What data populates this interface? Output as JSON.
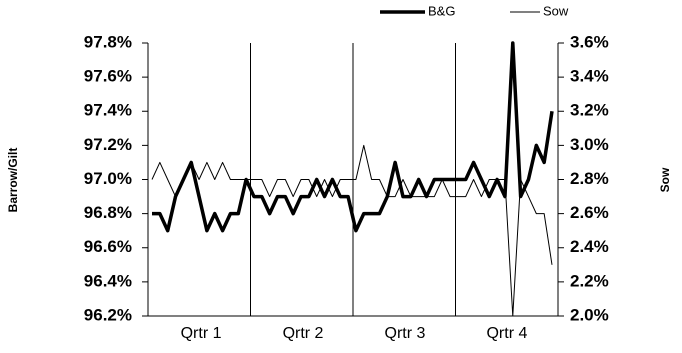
{
  "chart_data": {
    "type": "line",
    "categories": [
      null,
      null,
      null,
      null,
      null,
      null,
      "Qrtr 1",
      null,
      null,
      null,
      null,
      null,
      null,
      null,
      null,
      null,
      null,
      null,
      null,
      "Qrtr 2",
      null,
      null,
      null,
      null,
      null,
      null,
      null,
      null,
      null,
      null,
      null,
      null,
      "Qrtr 3",
      null,
      null,
      null,
      null,
      null,
      null,
      null,
      null,
      null,
      null,
      null,
      null,
      "Qrtr 4",
      null,
      null,
      null,
      null,
      null,
      null
    ],
    "y_label": "Barrow/Gilt",
    "y2_label": "Sow",
    "ylim": [
      96.2,
      97.8
    ],
    "yticks": [
      {
        "value": 96.2,
        "label": "96.2%"
      },
      {
        "value": 96.4,
        "label": "96.4%"
      },
      {
        "value": 96.6,
        "label": "96.6%"
      },
      {
        "value": 96.8,
        "label": "96.8%"
      },
      {
        "value": 97.0,
        "label": "97.0%"
      },
      {
        "value": 97.2,
        "label": "97.2%"
      },
      {
        "value": 97.4,
        "label": "97.4%"
      },
      {
        "value": 97.6,
        "label": "97.6%"
      },
      {
        "value": 97.8,
        "label": "97.8%"
      }
    ],
    "y2lim": [
      2.0,
      3.6
    ],
    "y2ticks": [
      {
        "value": 2.0,
        "label": "2.0%"
      },
      {
        "value": 2.2,
        "label": "2.2%"
      },
      {
        "value": 2.4,
        "label": "2.4%"
      },
      {
        "value": 2.6,
        "label": "2.6%"
      },
      {
        "value": 2.8,
        "label": "2.8%"
      },
      {
        "value": 3.0,
        "label": "3.0%"
      },
      {
        "value": 3.2,
        "label": "3.2%"
      },
      {
        "value": 3.4,
        "label": "3.4%"
      },
      {
        "value": 3.6,
        "label": "3.6%"
      }
    ],
    "series": [
      {
        "name": "B&G",
        "color": "#000000",
        "width": 3.5,
        "values": [
          96.8,
          96.8,
          96.7,
          96.9,
          97.0,
          97.1,
          96.9,
          96.7,
          96.8,
          96.7,
          96.8,
          96.8,
          97.0,
          96.9,
          96.9,
          96.8,
          96.9,
          96.9,
          96.8,
          96.9,
          96.9,
          97.0,
          96.9,
          97.0,
          96.9,
          96.9,
          96.7,
          96.8,
          96.8,
          96.8,
          96.9,
          97.1,
          96.9,
          96.9,
          97.0,
          96.9,
          97.0,
          97.0,
          97.0,
          97.0,
          97.0,
          97.1,
          97.0,
          96.9,
          97.0,
          96.9,
          97.8,
          96.9,
          97.0,
          97.2,
          97.1,
          97.4
        ]
      },
      {
        "name": "Sow",
        "color": "#000000",
        "width": 1,
        "axis": "y2",
        "values": [
          2.8,
          2.9,
          2.8,
          2.7,
          2.8,
          2.9,
          2.8,
          2.9,
          2.8,
          2.9,
          2.8,
          2.8,
          2.8,
          2.8,
          2.8,
          2.7,
          2.8,
          2.8,
          2.7,
          2.8,
          2.8,
          2.7,
          2.8,
          2.7,
          2.8,
          2.8,
          2.8,
          3.0,
          2.8,
          2.8,
          2.7,
          2.7,
          2.8,
          2.7,
          2.7,
          2.7,
          2.7,
          2.8,
          2.7,
          2.7,
          2.7,
          2.8,
          2.7,
          2.8,
          2.8,
          2.8,
          2.0,
          2.8,
          2.7,
          2.6,
          2.6,
          2.3
        ]
      }
    ]
  }
}
